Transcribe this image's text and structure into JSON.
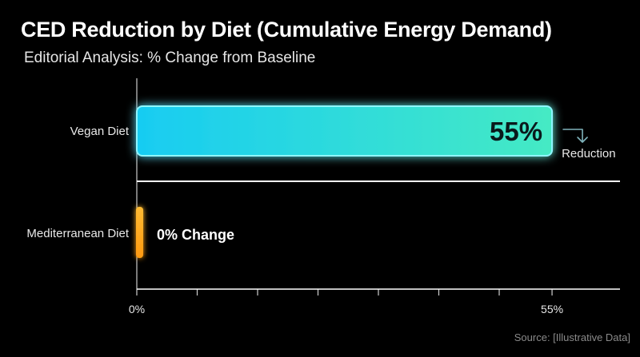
{
  "header": {
    "title": "CED Reduction by Diet (Cumulative Energy Demand)",
    "subtitle": "Editorial Analysis: % Change from Baseline"
  },
  "footer": {
    "source": "Source: [Illustrative Data]"
  },
  "colors": {
    "background": "#000000",
    "vegan_bar_start": "#1ad0f0",
    "vegan_bar_end": "#3fe8c0",
    "vegan_glow": "#18e4ff",
    "mediterranean_bar": "#ffa51a",
    "grid": "#a9d8de",
    "axis": "#ffffff"
  },
  "chart_data": {
    "type": "bar",
    "orientation": "horizontal",
    "categories": [
      "Vegan Diet",
      "Mediterranean Diet"
    ],
    "values": [
      55,
      0
    ],
    "value_labels": [
      "55%",
      "0% Change"
    ],
    "unit": "%",
    "xlim": [
      0,
      64
    ],
    "xticks": [
      0,
      8,
      16,
      24,
      32,
      40,
      48,
      55
    ],
    "xtick_labels": [
      "0%",
      "",
      "",
      "",
      "",
      "",
      "",
      "55%"
    ],
    "grid": true,
    "annotation": {
      "text": "Reduction",
      "target": "Vegan Diet",
      "icon": "arrow-down-right-icon"
    }
  }
}
